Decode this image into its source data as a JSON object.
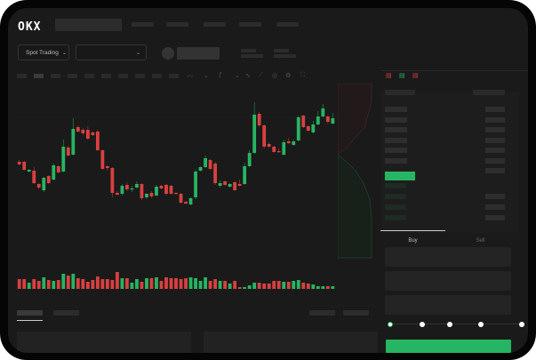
{
  "brand": {
    "logo_text": "OKX"
  },
  "toolbar": {
    "market_selector": "Spot Trading"
  },
  "trade": {
    "tabs": [
      {
        "label": "Buy",
        "active": true
      },
      {
        "label": "Sell",
        "active": false
      }
    ],
    "slider_value": 0
  },
  "colors": {
    "up": "#27b562",
    "down": "#d94040",
    "accent": "#25b563",
    "background": "#1a1a1a"
  },
  "icons": [
    "chevron-down-icon",
    "chart-line-icon",
    "ruler-icon",
    "camera-icon",
    "settings-icon",
    "fullscreen-icon",
    "orderbook-both-icon",
    "orderbook-bids-icon",
    "orderbook-asks-icon"
  ],
  "chart_data": {
    "type": "candlestick",
    "candles": [
      [
        118,
        120,
        114,
        115
      ],
      [
        118,
        119,
        108,
        109
      ],
      [
        107,
        110,
        106,
        109
      ],
      [
        108,
        112,
        93,
        94
      ],
      [
        93,
        94,
        87,
        89
      ],
      [
        86,
        101,
        84,
        100
      ],
      [
        102,
        103,
        93,
        94
      ],
      [
        98,
        116,
        97,
        114
      ],
      [
        113,
        114,
        105,
        106
      ],
      [
        107,
        143,
        106,
        135
      ],
      [
        134,
        136,
        124,
        125
      ],
      [
        126,
        167,
        125,
        155
      ],
      [
        157,
        159,
        151,
        152
      ],
      [
        154,
        156,
        148,
        150
      ],
      [
        154,
        158,
        143,
        144
      ],
      [
        151,
        152,
        147,
        148
      ],
      [
        152,
        154,
        130,
        131
      ],
      [
        131,
        132,
        109,
        110
      ],
      [
        113,
        114,
        108,
        111
      ],
      [
        111,
        112,
        78,
        83
      ],
      [
        83,
        85,
        80,
        81
      ],
      [
        82,
        93,
        80,
        91
      ],
      [
        92,
        95,
        85,
        87
      ],
      [
        87,
        91,
        84,
        88
      ],
      [
        89,
        96,
        88,
        93
      ],
      [
        93,
        94,
        75,
        77
      ],
      [
        78,
        83,
        76,
        82
      ],
      [
        83,
        85,
        77,
        79
      ],
      [
        80,
        92,
        79,
        90
      ],
      [
        91,
        92,
        87,
        88
      ],
      [
        92,
        93,
        80,
        82
      ],
      [
        91,
        92,
        81,
        82
      ],
      [
        83,
        84,
        81,
        82
      ],
      [
        82,
        83,
        71,
        72
      ],
      [
        73,
        74,
        70,
        71
      ],
      [
        70,
        78,
        69,
        77
      ],
      [
        78,
        109,
        76,
        107
      ],
      [
        108,
        113,
        107,
        112
      ],
      [
        112,
        125,
        111,
        122
      ],
      [
        120,
        121,
        109,
        110
      ],
      [
        116,
        118,
        92,
        94
      ],
      [
        91,
        97,
        89,
        94
      ],
      [
        96,
        97,
        91,
        92
      ],
      [
        90,
        94,
        89,
        93
      ],
      [
        95,
        96,
        85,
        86
      ],
      [
        93,
        98,
        90,
        91
      ],
      [
        93,
        117,
        92,
        113
      ],
      [
        113,
        131,
        112,
        128
      ],
      [
        128,
        185,
        127,
        171
      ],
      [
        172,
        174,
        157,
        159
      ],
      [
        159,
        160,
        133,
        135
      ],
      [
        138,
        140,
        134,
        135
      ],
      [
        135,
        136,
        128,
        129
      ],
      [
        130,
        133,
        128,
        129
      ],
      [
        126,
        143,
        125,
        140
      ],
      [
        141,
        145,
        138,
        139
      ],
      [
        137,
        143,
        136,
        141
      ],
      [
        142,
        170,
        141,
        168
      ],
      [
        170,
        171,
        156,
        157
      ],
      [
        158,
        159,
        152,
        153
      ],
      [
        151,
        164,
        150,
        160
      ],
      [
        160,
        175,
        159,
        169
      ],
      [
        169,
        183,
        168,
        178
      ],
      [
        169,
        170,
        161,
        163
      ],
      [
        161,
        173,
        160,
        167
      ]
    ],
    "volume": [
      11,
      11,
      7,
      11,
      9,
      13,
      10,
      9,
      10,
      17,
      15,
      17,
      12,
      11,
      8,
      10,
      14,
      11,
      11,
      10,
      19,
      12,
      12,
      7,
      11,
      8,
      12,
      12,
      13,
      9,
      13,
      12,
      12,
      11,
      12,
      13,
      12,
      9,
      13,
      9,
      11,
      9,
      9,
      6,
      9,
      2,
      2,
      4,
      7,
      7,
      6,
      6,
      9,
      9,
      8,
      8,
      9,
      10,
      7,
      6,
      5,
      3,
      3,
      3,
      3
    ],
    "grid": false
  }
}
